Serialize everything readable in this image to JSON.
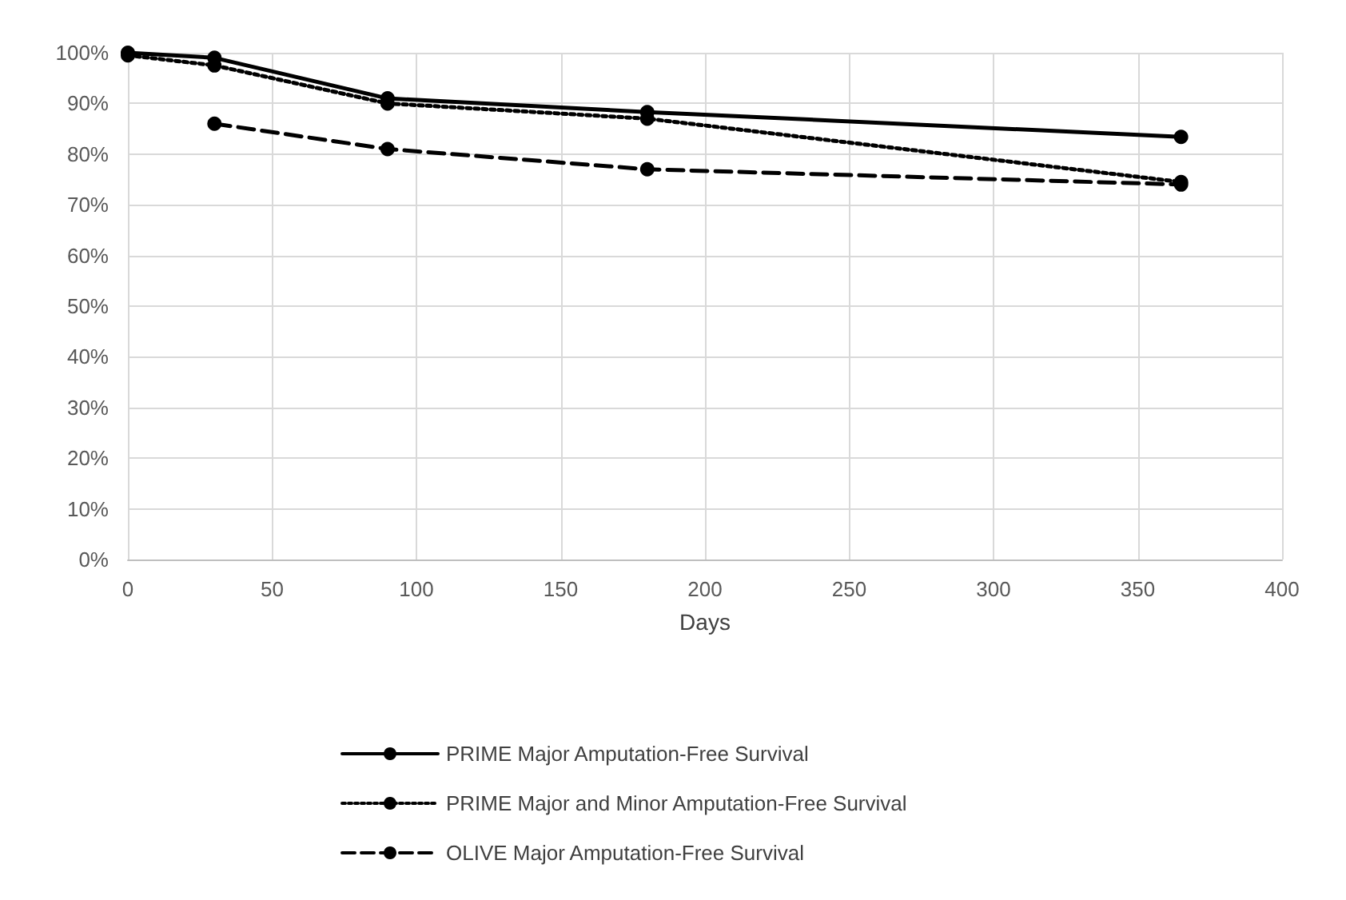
{
  "chart_data": {
    "type": "line",
    "xlabel": "Days",
    "xlim": [
      0,
      400
    ],
    "xticks": [
      0,
      50,
      100,
      150,
      200,
      250,
      300,
      350,
      400
    ],
    "ylim": [
      0,
      100
    ],
    "yticks": [
      {
        "value": 0,
        "label": "0%"
      },
      {
        "value": 10,
        "label": "10%"
      },
      {
        "value": 20,
        "label": "20%"
      },
      {
        "value": 30,
        "label": "30%"
      },
      {
        "value": 40,
        "label": "40%"
      },
      {
        "value": 50,
        "label": "50%"
      },
      {
        "value": 60,
        "label": "60%"
      },
      {
        "value": 70,
        "label": "70%"
      },
      {
        "value": 80,
        "label": "80%"
      },
      {
        "value": 90,
        "label": "90%"
      },
      {
        "value": 100,
        "label": "100%"
      }
    ],
    "grid": true,
    "legend": "bottom",
    "marker": "circle",
    "series": [
      {
        "name": "PRIME Major Amputation-Free Survival",
        "color": "#000000",
        "line_style": "solid",
        "x": [
          0,
          30,
          90,
          180,
          365
        ],
        "values": [
          100,
          99,
          91,
          88.3,
          83.4
        ]
      },
      {
        "name": "PRIME Major and Minor Amputation-Free Survival",
        "color": "#000000",
        "line_style": "dotted",
        "x": [
          0,
          30,
          90,
          180,
          365
        ],
        "values": [
          99.5,
          97.5,
          90,
          87,
          74.5
        ]
      },
      {
        "name": "OLIVE Major Amputation-Free Survival",
        "color": "#000000",
        "line_style": "dashed",
        "x": [
          30,
          90,
          180,
          365
        ],
        "values": [
          86,
          81,
          77,
          74
        ]
      }
    ]
  }
}
